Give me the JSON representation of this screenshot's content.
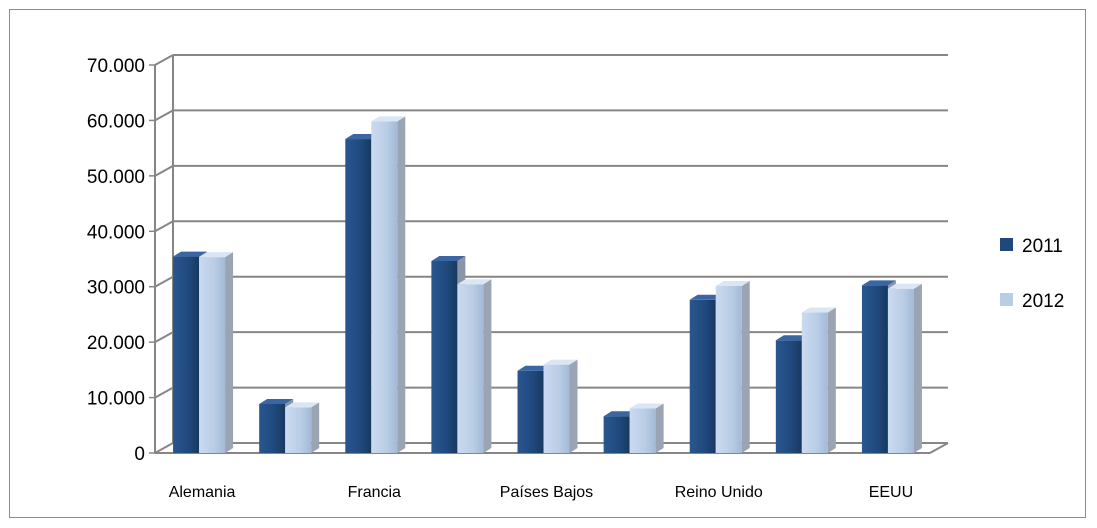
{
  "chart_data": {
    "type": "bar",
    "categories": [
      "Alemania",
      "",
      "Francia",
      "",
      "Países Bajos",
      "",
      "Reino Unido",
      "",
      "EEUU"
    ],
    "series": [
      {
        "name": "2011",
        "values": [
          35800,
          9200,
          57000,
          35000,
          15200,
          7000,
          28000,
          20700,
          30600
        ]
      },
      {
        "name": "2012",
        "values": [
          35700,
          8600,
          60200,
          30800,
          16300,
          8400,
          30500,
          25700,
          30000
        ]
      }
    ],
    "title": "",
    "xlabel": "",
    "ylabel": "",
    "ylim": [
      0,
      70000
    ],
    "yticks": [
      "0",
      "10.000",
      "20.000",
      "30.000",
      "40.000",
      "50.000",
      "60.000",
      "70.000"
    ],
    "grid": true,
    "legend": "right",
    "colors": {
      "2011": "#1f497d",
      "2012": "#b9cde5"
    }
  }
}
